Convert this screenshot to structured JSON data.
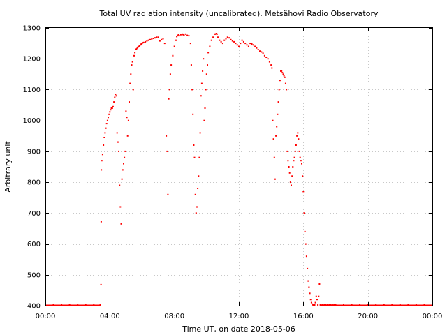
{
  "chart_data": {
    "type": "scatter",
    "title": "Total UV radiation intensity (uncalibrated). Metsähovi Radio Observatory",
    "xlabel": "Time UT, on date 2018-05-06",
    "ylabel": "Arbitrary unit",
    "xlim": [
      0,
      24
    ],
    "ylim": [
      400,
      1300
    ],
    "x_ticks": [
      {
        "value": 0,
        "label": "00:00"
      },
      {
        "value": 4,
        "label": "04:00"
      },
      {
        "value": 8,
        "label": "08:00"
      },
      {
        "value": 12,
        "label": "12:00"
      },
      {
        "value": 16,
        "label": "16:00"
      },
      {
        "value": 20,
        "label": "20:00"
      },
      {
        "value": 24,
        "label": "00:00"
      }
    ],
    "y_ticks": [
      {
        "value": 400,
        "label": "400"
      },
      {
        "value": 500,
        "label": "500"
      },
      {
        "value": 600,
        "label": "600"
      },
      {
        "value": 700,
        "label": "700"
      },
      {
        "value": 800,
        "label": "800"
      },
      {
        "value": 900,
        "label": "900"
      },
      {
        "value": 1000,
        "label": "1000"
      },
      {
        "value": 1100,
        "label": "1100"
      },
      {
        "value": 1200,
        "label": "1200"
      },
      {
        "value": 1300,
        "label": "1300"
      }
    ],
    "grid": true,
    "legend": "none",
    "series_color": "#ff0000",
    "series": [
      {
        "x": [
          0.0,
          0.5,
          1.0,
          1.5,
          2.0,
          2.5,
          3.0,
          3.4,
          3.45,
          3.46,
          3.47,
          3.5,
          3.55,
          3.6,
          3.65,
          3.7,
          3.75,
          3.8,
          3.85,
          3.9,
          3.95,
          4.0,
          4.05,
          4.1,
          4.15,
          4.2,
          4.25,
          4.3,
          4.35,
          4.4,
          4.45,
          4.5,
          4.55,
          4.6,
          4.65,
          4.7,
          4.75,
          4.8,
          4.85,
          4.9,
          4.95,
          5.0,
          5.05,
          5.1,
          5.15,
          5.2,
          5.25,
          5.3,
          5.35,
          5.4,
          5.45,
          5.5,
          5.55,
          5.6,
          5.65,
          5.7,
          5.75,
          5.8,
          5.85,
          5.9,
          5.95,
          6.0,
          6.05,
          6.1,
          6.2,
          6.3,
          6.4,
          6.5,
          6.6,
          6.7,
          6.8,
          6.9,
          7.0,
          7.1,
          7.2,
          7.3,
          7.4,
          7.5,
          7.55,
          7.6,
          7.65,
          7.7,
          7.75,
          7.8,
          7.9,
          8.0,
          8.1,
          8.15,
          8.2,
          8.25,
          8.3,
          8.4,
          8.5,
          8.55,
          8.6,
          8.7,
          8.8,
          8.9,
          9.0,
          9.05,
          9.1,
          9.15,
          9.2,
          9.25,
          9.3,
          9.35,
          9.4,
          9.45,
          9.5,
          9.55,
          9.6,
          9.65,
          9.7,
          9.75,
          9.8,
          9.85,
          9.9,
          9.95,
          10.0,
          10.05,
          10.1,
          10.2,
          10.3,
          10.4,
          10.5,
          10.55,
          10.6,
          10.65,
          10.7,
          10.8,
          10.9,
          11.0,
          11.1,
          11.2,
          11.3,
          11.4,
          11.5,
          11.6,
          11.7,
          11.8,
          11.9,
          12.0,
          12.1,
          12.2,
          12.3,
          12.4,
          12.5,
          12.6,
          12.7,
          12.8,
          12.9,
          13.0,
          13.1,
          13.2,
          13.3,
          13.4,
          13.5,
          13.6,
          13.7,
          13.8,
          13.9,
          14.0,
          14.05,
          14.1,
          14.15,
          14.2,
          14.25,
          14.3,
          14.35,
          14.4,
          14.45,
          14.5,
          14.55,
          14.6,
          14.65,
          14.7,
          14.75,
          14.8,
          14.85,
          14.9,
          14.95,
          15.0,
          15.05,
          15.1,
          15.15,
          15.2,
          15.25,
          15.3,
          15.35,
          15.4,
          15.45,
          15.5,
          15.55,
          15.6,
          15.65,
          15.7,
          15.75,
          15.8,
          15.85,
          15.9,
          15.95,
          16.0,
          16.05,
          16.1,
          16.15,
          16.2,
          16.25,
          16.3,
          16.35,
          16.4,
          16.45,
          16.5,
          16.55,
          16.6,
          16.65,
          16.7,
          16.75,
          16.8,
          16.85,
          16.9,
          16.95,
          17.0,
          17.05,
          17.1,
          17.2,
          17.3,
          17.4,
          17.5,
          17.6,
          17.7,
          17.8,
          17.9,
          18.0,
          18.5,
          19.0,
          19.5,
          20.0,
          20.5,
          21.0,
          21.5,
          22.0,
          22.5,
          23.0,
          23.5,
          24.0
        ],
        "y": [
          400,
          400,
          400,
          400,
          400,
          400,
          400,
          400,
          468,
          672,
          840,
          870,
          890,
          920,
          945,
          960,
          975,
          990,
          1000,
          1010,
          1020,
          1028,
          1035,
          1040,
          1040,
          1045,
          1060,
          1075,
          1085,
          1080,
          960,
          930,
          900,
          790,
          720,
          665,
          810,
          840,
          860,
          880,
          900,
          1030,
          1010,
          950,
          1000,
          1060,
          1120,
          1150,
          1180,
          1190,
          1100,
          1210,
          1220,
          1230,
          1232,
          1235,
          1238,
          1240,
          1243,
          1245,
          1248,
          1250,
          1252,
          1253,
          1255,
          1258,
          1260,
          1262,
          1264,
          1266,
          1268,
          1270,
          1270,
          1258,
          1262,
          1265,
          1250,
          950,
          900,
          760,
          1070,
          1100,
          1150,
          1180,
          1210,
          1240,
          1260,
          1272,
          1275,
          1278,
          1275,
          1278,
          1280,
          1278,
          1276,
          1280,
          1276,
          1275,
          1250,
          1180,
          1100,
          1020,
          920,
          880,
          760,
          700,
          720,
          780,
          820,
          880,
          960,
          1080,
          1120,
          1160,
          1200,
          1000,
          1040,
          1100,
          1150,
          1180,
          1220,
          1240,
          1260,
          1270,
          1280,
          1280,
          1282,
          1280,
          1270,
          1260,
          1255,
          1250,
          1260,
          1265,
          1270,
          1268,
          1262,
          1258,
          1255,
          1250,
          1245,
          1240,
          1250,
          1260,
          1255,
          1250,
          1245,
          1240,
          1250,
          1248,
          1245,
          1240,
          1235,
          1230,
          1225,
          1222,
          1218,
          1210,
          1205,
          1200,
          1190,
          1180,
          1170,
          1000,
          940,
          880,
          810,
          950,
          980,
          1020,
          1060,
          1100,
          1130,
          1160,
          1160,
          1155,
          1150,
          1145,
          1140,
          1120,
          1100,
          900,
          870,
          850,
          830,
          800,
          790,
          820,
          850,
          870,
          880,
          900,
          920,
          950,
          960,
          940,
          900,
          880,
          870,
          860,
          820,
          770,
          700,
          640,
          600,
          560,
          520,
          480,
          460,
          440,
          420,
          410,
          405,
          400,
          400,
          400,
          410,
          430,
          420,
          400,
          430,
          470,
          400,
          400,
          400,
          400,
          400,
          400,
          400,
          400,
          400,
          400,
          400,
          400,
          400,
          400,
          400,
          400,
          400,
          400,
          400,
          400,
          400,
          400,
          400
        ]
      }
    ]
  }
}
